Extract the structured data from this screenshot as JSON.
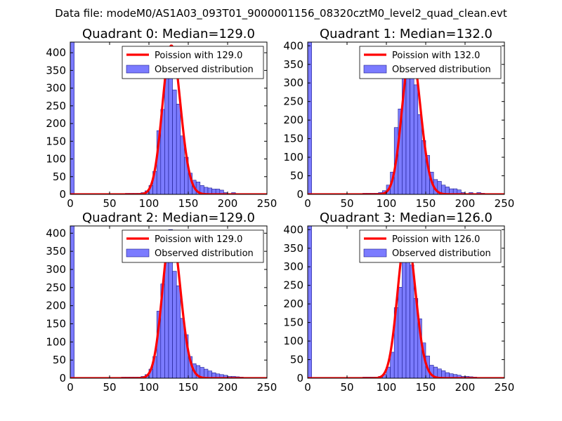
{
  "figure": {
    "suptitle": "Data file: modeM0/AS1A03_093T01_9000001156_08320cztM0_level2_quad_clean.evt",
    "colors": {
      "bar_fill": "#7b7bff",
      "bar_edge": "#1a1a8c",
      "fit_line": "#ff0000",
      "axes": "#000000",
      "background": "#ffffff"
    }
  },
  "chart_data": [
    {
      "type": "bar",
      "title": "Quadrant 0: Median=129.0",
      "xlim": [
        0,
        250
      ],
      "ylim": [
        0,
        430
      ],
      "xticks": [
        0,
        50,
        100,
        150,
        200,
        250
      ],
      "yticks": [
        0,
        50,
        100,
        150,
        200,
        250,
        300,
        350,
        400
      ],
      "bin_width": 5,
      "edge_bar": {
        "x": 0,
        "width": 5,
        "value": 430
      },
      "bins": [
        70,
        75,
        80,
        85,
        90,
        95,
        100,
        105,
        110,
        115,
        120,
        125,
        130,
        135,
        140,
        145,
        150,
        155,
        160,
        165,
        170,
        175,
        180,
        185,
        190,
        195,
        200,
        205,
        210
      ],
      "values": [
        3,
        3,
        3,
        3,
        5,
        10,
        25,
        65,
        180,
        240,
        335,
        405,
        295,
        255,
        165,
        105,
        60,
        40,
        35,
        25,
        20,
        18,
        15,
        15,
        12,
        5,
        0,
        5,
        2
      ],
      "poisson": {
        "label": "Poission with 129.0",
        "mean": 129.0,
        "amplitude": 420
      },
      "legend": {
        "fit_label": "Poission with 129.0",
        "bar_label": "Observed distribution",
        "loc": "upper right"
      }
    },
    {
      "type": "bar",
      "title": "Quadrant 1: Median=132.0",
      "xlim": [
        0,
        250
      ],
      "ylim": [
        0,
        410
      ],
      "xticks": [
        0,
        50,
        100,
        150,
        200,
        250
      ],
      "yticks": [
        0,
        50,
        100,
        150,
        200,
        250,
        300,
        350,
        400
      ],
      "bin_width": 5,
      "edge_bar": {
        "x": 0,
        "width": 5,
        "value": 410
      },
      "bins": [
        70,
        75,
        80,
        85,
        90,
        95,
        100,
        105,
        110,
        115,
        120,
        125,
        130,
        135,
        140,
        145,
        150,
        155,
        160,
        165,
        170,
        175,
        180,
        185,
        190,
        195,
        200,
        205,
        210,
        215,
        220,
        225,
        230
      ],
      "values": [
        3,
        3,
        3,
        3,
        5,
        10,
        25,
        60,
        180,
        230,
        315,
        390,
        325,
        295,
        215,
        145,
        105,
        60,
        40,
        35,
        25,
        20,
        15,
        15,
        12,
        5,
        0,
        5,
        2,
        5,
        3,
        2,
        2
      ],
      "poisson": {
        "label": "Poission with 132.0",
        "mean": 132.0,
        "amplitude": 390
      },
      "legend": {
        "fit_label": "Poission with 132.0",
        "bar_label": "Observed distribution",
        "loc": "upper right"
      }
    },
    {
      "type": "bar",
      "title": "Quadrant 2: Median=129.0",
      "xlim": [
        0,
        250
      ],
      "ylim": [
        0,
        420
      ],
      "xticks": [
        0,
        50,
        100,
        150,
        200,
        250
      ],
      "yticks": [
        0,
        50,
        100,
        150,
        200,
        250,
        300,
        350,
        400
      ],
      "bin_width": 5,
      "edge_bar": {
        "x": 0,
        "width": 5,
        "value": 420
      },
      "bins": [
        65,
        70,
        75,
        80,
        85,
        90,
        95,
        100,
        105,
        110,
        115,
        120,
        125,
        130,
        135,
        140,
        145,
        150,
        155,
        160,
        165,
        170,
        175,
        180,
        185,
        190,
        195,
        200,
        205,
        210,
        215,
        220,
        225,
        230
      ],
      "values": [
        3,
        3,
        3,
        3,
        3,
        5,
        10,
        25,
        60,
        185,
        260,
        365,
        410,
        295,
        255,
        165,
        120,
        60,
        40,
        35,
        30,
        25,
        20,
        15,
        12,
        10,
        8,
        5,
        5,
        4,
        3,
        2,
        2,
        2
      ],
      "poisson": {
        "label": "Poission with 129.0",
        "mean": 129.0,
        "amplitude": 405
      },
      "legend": {
        "fit_label": "Poission with 129.0",
        "bar_label": "Observed distribution",
        "loc": "upper right"
      }
    },
    {
      "type": "bar",
      "title": "Quadrant 3: Median=126.0",
      "xlim": [
        0,
        250
      ],
      "ylim": [
        0,
        410
      ],
      "xticks": [
        0,
        50,
        100,
        150,
        200,
        250
      ],
      "yticks": [
        0,
        50,
        100,
        150,
        200,
        250,
        300,
        350,
        400
      ],
      "bin_width": 5,
      "edge_bar": {
        "x": 0,
        "width": 5,
        "value": 410
      },
      "bins": [
        70,
        75,
        80,
        85,
        90,
        95,
        100,
        105,
        110,
        115,
        120,
        125,
        130,
        135,
        140,
        145,
        150,
        155,
        160,
        165,
        170,
        175,
        180,
        185,
        190,
        195,
        200,
        205,
        210,
        215,
        220,
        225,
        230
      ],
      "values": [
        3,
        3,
        3,
        3,
        5,
        10,
        30,
        70,
        190,
        245,
        360,
        395,
        305,
        215,
        160,
        95,
        60,
        35,
        30,
        25,
        20,
        15,
        12,
        10,
        8,
        5,
        5,
        4,
        3,
        2,
        2,
        2,
        2
      ],
      "poisson": {
        "label": "Poission with 126.0",
        "mean": 126.0,
        "amplitude": 390
      },
      "legend": {
        "fit_label": "Poission with 126.0",
        "bar_label": "Observed distribution",
        "loc": "upper right"
      }
    }
  ]
}
